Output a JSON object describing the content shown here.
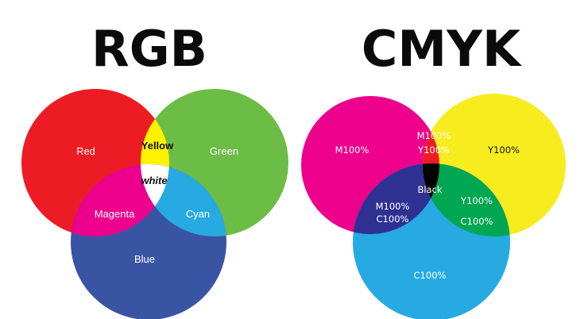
{
  "rgb": {
    "title": "RGB",
    "colors": {
      "red": "#ed1c24",
      "green": "#6cbd45",
      "blue": "#3a54a4",
      "yellow": "#fff200",
      "magenta": "#ec008c",
      "cyan": "#27aae1",
      "white": "#ffffff"
    },
    "labels": {
      "red": "Red",
      "green": "Green",
      "blue": "Blue",
      "yellow": "Yellow",
      "magenta": "Magenta",
      "cyan": "Cyan",
      "white": "white"
    }
  },
  "cmyk": {
    "title": "CMYK",
    "colors": {
      "magenta": "#ec008c",
      "yellow": "#f7ec1e",
      "cyan": "#27aae1",
      "red": "#ed1c24",
      "blue": "#2e3192",
      "green": "#00a651",
      "black": "#050505"
    },
    "labels": {
      "magenta": "M100%",
      "yellow": "Y100%",
      "cyan": "C100%",
      "mag_yel_line1": "M100%",
      "mag_yel_line2": "Y100%",
      "mag_cyan_line1": "M100%",
      "mag_cyan_line2": "C100%",
      "yel_cyan_line1": "Y100%",
      "yel_cyan_line2": "C100%",
      "black": "Black"
    }
  }
}
